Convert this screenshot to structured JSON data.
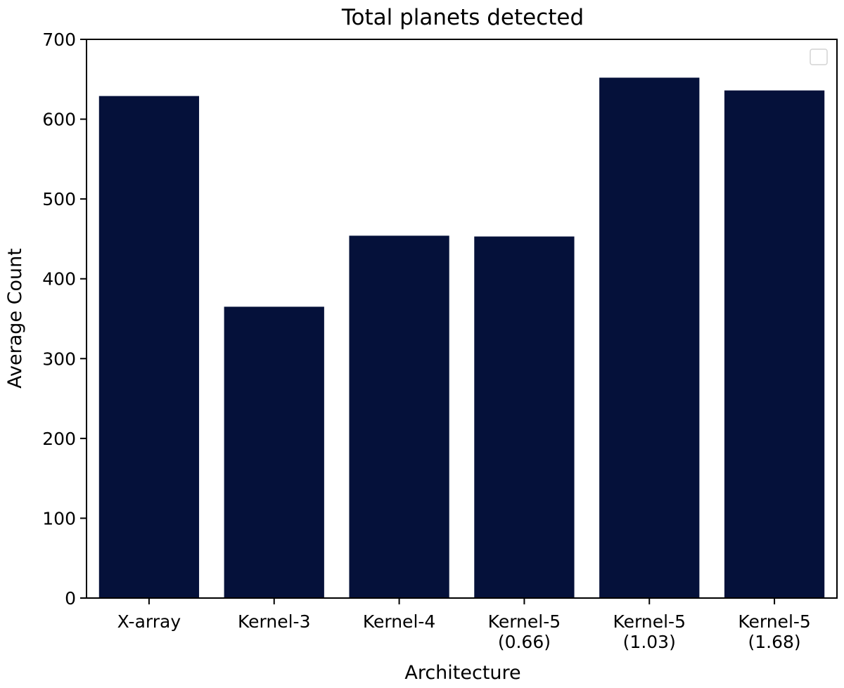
{
  "chart_data": {
    "type": "bar",
    "title": "Total planets detected",
    "xlabel": "Architecture",
    "ylabel": "Average Count",
    "categories": [
      [
        "X-array"
      ],
      [
        "Kernel-3"
      ],
      [
        "Kernel-4"
      ],
      [
        "Kernel-5",
        "(0.66)"
      ],
      [
        "Kernel-5",
        "(1.03)"
      ],
      [
        "Kernel-5",
        "(1.68)"
      ]
    ],
    "values": [
      629,
      365,
      454,
      453,
      652,
      636
    ],
    "ylim": [
      0,
      700
    ],
    "yticks": [
      "0",
      "100",
      "200",
      "300",
      "400",
      "500",
      "600",
      "700"
    ],
    "bar_color": "#05113a",
    "grid": false,
    "legend": {
      "placement": "top-right",
      "entries": []
    }
  }
}
